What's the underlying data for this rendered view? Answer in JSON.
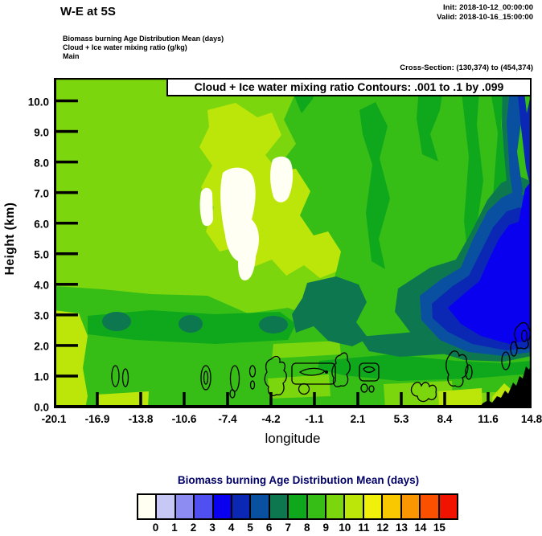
{
  "header": {
    "title": "W-E at 5S",
    "init": "Init: 2018-10-12_00:00:00",
    "valid": "Valid: 2018-10-16_15:00:00",
    "field_lines": [
      "Biomass burning Age Distribution Mean   (days)",
      "Cloud + Ice water mixing ratio   (g/kg)",
      "Main"
    ],
    "cross_section": "Cross-Section: (130,374) to (454,374)"
  },
  "plot": {
    "overlay_title": "Cloud + Ice water mixing ratio Contours: .001 to .1 by .099",
    "xlabel": "longitude",
    "ylabel": "Height (km)",
    "y_tick_labels": [
      "10.0",
      "9.0",
      "8.0",
      "7.0",
      "6.0",
      "5.0",
      "4.0",
      "3.0",
      "2.0",
      "1.0",
      "0.0"
    ],
    "x_tick_labels": [
      "-20.1",
      "-16.9",
      "-13.8",
      "-10.6",
      "-7.4",
      "-4.2",
      "-1.1",
      "2.1",
      "5.3",
      "8.4",
      "11.6",
      "14.8"
    ]
  },
  "colorbar": {
    "title": "Biomass burning Age Distribution Mean  (days)",
    "tick_labels": [
      "0",
      "1",
      "2",
      "3",
      "4",
      "5",
      "6",
      "7",
      "8",
      "9",
      "10",
      "11",
      "12",
      "13",
      "14",
      "15"
    ],
    "colors": [
      "#FFFFF2",
      "#C8C8F6",
      "#8C8CF2",
      "#5050F2",
      "#0A00F0",
      "#0A28B4",
      "#0A50A0",
      "#0D7850",
      "#0FA81C",
      "#36BE16",
      "#7CD60E",
      "#BCE60A",
      "#F0F00A",
      "#FAC800",
      "#FA9600",
      "#FA5000",
      "#F01400"
    ]
  },
  "chart_data": {
    "type": "heatmap",
    "subtype": "filled-contour vertical cross-section (west-east at 5S)",
    "title": "W-E at 5S",
    "xlabel": "longitude",
    "ylabel": "Height (km)",
    "xlim": [
      -20.1,
      14.8
    ],
    "ylim_km": [
      0,
      10.8
    ],
    "x_ticks": [
      -20.1,
      -16.9,
      -13.8,
      -10.6,
      -7.4,
      -4.2,
      -1.1,
      2.1,
      5.3,
      8.4,
      11.6,
      14.8
    ],
    "y_ticks": [
      0,
      1,
      2,
      3,
      4,
      5,
      6,
      7,
      8,
      9,
      10
    ],
    "grid": false,
    "fill_field": {
      "name": "Biomass burning Age Distribution Mean",
      "units": "days",
      "contour_levels": [
        0,
        1,
        2,
        3,
        4,
        5,
        6,
        7,
        8,
        9,
        10,
        11,
        12,
        13,
        14,
        15
      ],
      "palette": [
        "#FFFFF2",
        "#C8C8F6",
        "#8C8CF2",
        "#5050F2",
        "#0A00F0",
        "#0A28B4",
        "#0A50A0",
        "#0D7850",
        "#0FA81C",
        "#36BE16",
        "#7CD60E",
        "#BCE60A",
        "#F0F00A",
        "#FAC800",
        "#FA9600",
        "#FA5000",
        "#F01400"
      ],
      "colorbar_position": "bottom"
    },
    "line_field": {
      "name": "Cloud + Ice water mixing ratio",
      "units": "g/kg",
      "contour_levels": [
        0.001,
        0.1
      ],
      "note": "Contours: .001 to .1 by .099"
    },
    "field_regions": [
      {
        "age_days": "9-10",
        "extent": "western half (lon -20.1 to about -5), 2.5-10.8 km, yellow-green"
      },
      {
        "age_days": "10-11",
        "extent": "pale yellow-green column lon -11 to -6.5 between 3 and 10 km; west-edge strip and bottom-strip patches below 1 km"
      },
      {
        "age_days": "~0 (white)",
        "extent": "white pockets lon -9.5 to -6 at 5.5-8 km with a tongue descending to ~4.5 km"
      },
      {
        "age_days": "8-9",
        "extent": "eastern-half background (lon -5 to 14.8) at most heights, bright green"
      },
      {
        "age_days": "7-8",
        "extent": "darker green vertical streaks aloft lon 5-13 and band near 2 km"
      },
      {
        "age_days": "6-7",
        "extent": "dark sea-green patches near 2.5-3.5 km (lon ~-16, ~-11, -6 to 0) and outer fringe of the eastern blue core"
      },
      {
        "age_days": "5-6",
        "extent": "steel-blue ring lon 9-14.8 at 2.5-7 km"
      },
      {
        "age_days": "4-5",
        "extent": "navy ring around blue core plus dark streaks at top-right corner (lon ~14, 8.5-10.5 km)"
      },
      {
        "age_days": "3-4",
        "extent": "bright blue core lon 10-14.8 at 3-7.5 km and along the east edge"
      }
    ],
    "cloud_contour_cells": "closed .001/.1 g/kg contour cells near 0.7-2 km at lon about -15.5, -12.5, -8.5 to -5, -0.5, 1.5-2.5, 5.5-7, 9.5-11, rising to ~2.5 km near the eastern terrain",
    "terrain": "black surface silhouette rising from lon ~11 to 14.8 up to ~1.4 km"
  }
}
